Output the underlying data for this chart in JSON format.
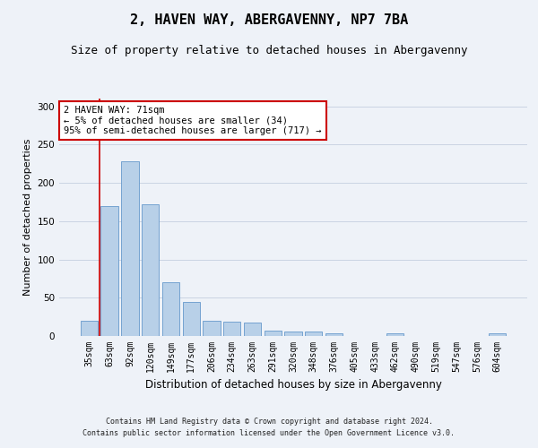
{
  "title": "2, HAVEN WAY, ABERGAVENNY, NP7 7BA",
  "subtitle": "Size of property relative to detached houses in Abergavenny",
  "xlabel": "Distribution of detached houses by size in Abergavenny",
  "ylabel": "Number of detached properties",
  "categories": [
    "35sqm",
    "63sqm",
    "92sqm",
    "120sqm",
    "149sqm",
    "177sqm",
    "206sqm",
    "234sqm",
    "263sqm",
    "291sqm",
    "320sqm",
    "348sqm",
    "376sqm",
    "405sqm",
    "433sqm",
    "462sqm",
    "490sqm",
    "519sqm",
    "547sqm",
    "576sqm",
    "604sqm"
  ],
  "values": [
    20,
    170,
    228,
    172,
    70,
    44,
    20,
    19,
    17,
    7,
    6,
    6,
    3,
    0,
    0,
    4,
    0,
    0,
    0,
    0,
    3
  ],
  "bar_color": "#b8d0e8",
  "bar_edge_color": "#6699cc",
  "vline_x_index": 1,
  "vline_color": "#cc0000",
  "annotation_line1": "2 HAVEN WAY: 71sqm",
  "annotation_line2": "← 5% of detached houses are smaller (34)",
  "annotation_line3": "95% of semi-detached houses are larger (717) →",
  "annotation_box_facecolor": "#ffffff",
  "annotation_box_edgecolor": "#cc0000",
  "ylim": [
    0,
    310
  ],
  "yticks": [
    0,
    50,
    100,
    150,
    200,
    250,
    300
  ],
  "footer_line1": "Contains HM Land Registry data © Crown copyright and database right 2024.",
  "footer_line2": "Contains public sector information licensed under the Open Government Licence v3.0.",
  "bg_color": "#eef2f8",
  "title_fontsize": 11,
  "subtitle_fontsize": 9,
  "ylabel_fontsize": 8,
  "xlabel_fontsize": 8.5,
  "tick_fontsize": 7,
  "annotation_fontsize": 7.5,
  "footer_fontsize": 6
}
